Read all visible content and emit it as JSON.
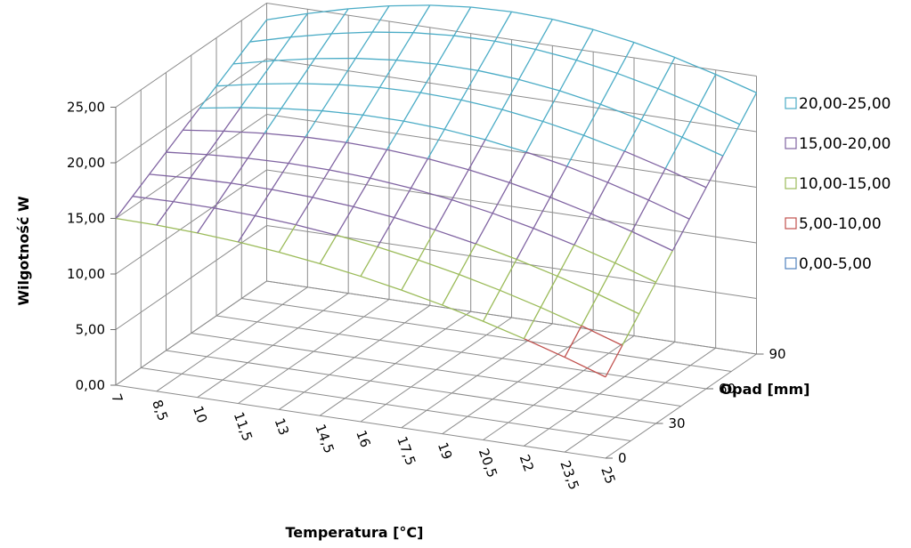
{
  "chart_data": {
    "type": "surface",
    "title": "",
    "zlabel": "Wilgotność W",
    "xlabel": "Temperatura [°C]",
    "ylabel": "Opad [mm]",
    "z_ticks": [
      "0,00",
      "5,00",
      "10,00",
      "15,00",
      "20,00",
      "25,00"
    ],
    "x_ticks": [
      "7",
      "8,5",
      "10",
      "11,5",
      "13",
      "14,5",
      "16",
      "17,5",
      "19",
      "20,5",
      "22",
      "23,5",
      "25"
    ],
    "y_ticks": [
      "0",
      "30",
      "60",
      "90"
    ],
    "zlim": [
      0,
      25
    ],
    "grid": true,
    "legend_position": "right",
    "legend": [
      {
        "label": "20,00-25,00",
        "color": "#4bacc6"
      },
      {
        "label": "15,00-20,00",
        "color": "#8064a2"
      },
      {
        "label": "10,00-15,00",
        "color": "#9bbb59"
      },
      {
        "label": "5,00-10,00",
        "color": "#c0504d"
      },
      {
        "label": "0,00-5,00",
        "color": "#4f81bd"
      }
    ]
  }
}
